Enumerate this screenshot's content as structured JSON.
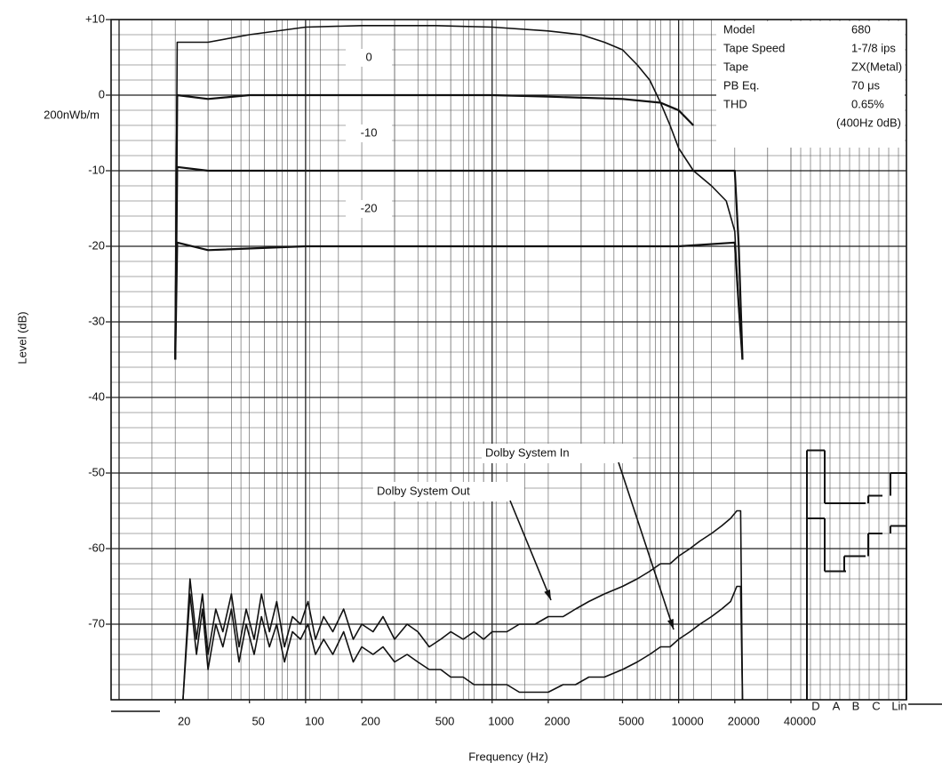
{
  "chart_data": {
    "type": "line",
    "x_label": "Frequency (Hz)",
    "y_label": "Level (dB)",
    "reference_label": "200nWb/m",
    "xscale": "log",
    "xlim": [
      10,
      40000
    ],
    "xticks": [
      20,
      50,
      100,
      200,
      500,
      1000,
      2000,
      5000,
      10000,
      20000,
      40000
    ],
    "ylim": [
      -80,
      10
    ],
    "yticks": [
      {
        "value": 10,
        "label": "+10"
      },
      0,
      -10,
      -20,
      -30,
      -40,
      -50,
      -60,
      -70
    ],
    "grid": true,
    "color": "#111111",
    "series": [
      {
        "name": "+10",
        "x": [
          20,
          20.5,
          30,
          50,
          100,
          200,
          500,
          1000,
          2000,
          3000,
          4000,
          5000,
          6000,
          7000,
          8000,
          9000,
          10000,
          12000,
          15000,
          18000,
          20000,
          21000,
          22000
        ],
        "values": [
          -35,
          7,
          7,
          8,
          9,
          9.2,
          9.2,
          9,
          8.5,
          8,
          7,
          6,
          4,
          2,
          -1,
          -4,
          -7,
          -10,
          -12,
          -14,
          -18,
          -28,
          -35
        ]
      },
      {
        "name": "0",
        "x": [
          20,
          20.5,
          30,
          50,
          100,
          500,
          1000,
          2000,
          5000,
          8000,
          10000,
          12000
        ],
        "values": [
          -35,
          0,
          -0.5,
          0,
          0,
          0,
          0,
          -0.2,
          -0.5,
          -1,
          -2,
          -4
        ]
      },
      {
        "name": "-10",
        "x": [
          20,
          20.5,
          30,
          50,
          100,
          500,
          2000,
          10000,
          20000,
          21000,
          22000
        ],
        "values": [
          -35,
          -9.5,
          -10,
          -10,
          -10,
          -10,
          -10,
          -10,
          -10,
          -20,
          -35
        ]
      },
      {
        "name": "-20",
        "x": [
          20,
          20.5,
          30,
          100,
          500,
          2000,
          10000,
          20000,
          21000,
          22000
        ],
        "values": [
          -35,
          -19.5,
          -20.5,
          -20,
          -20,
          -20,
          -20,
          -19.5,
          -28,
          -35
        ]
      },
      {
        "name": "Dolby System Out",
        "x": [
          22,
          24,
          26,
          28,
          30,
          33,
          36,
          40,
          44,
          48,
          53,
          58,
          64,
          70,
          77,
          85,
          94,
          103,
          113,
          125,
          140,
          160,
          180,
          200,
          230,
          260,
          300,
          350,
          400,
          460,
          530,
          600,
          700,
          800,
          900,
          1000,
          1200,
          1400,
          1700,
          2000,
          2400,
          2800,
          3300,
          4000,
          5000,
          6000,
          7000,
          8000,
          9000,
          10000,
          11500,
          13000,
          15000,
          17000,
          19000,
          20500,
          21500,
          22000
        ],
        "values": [
          -80,
          -64,
          -72,
          -66,
          -74,
          -68,
          -71,
          -66,
          -73,
          -68,
          -72,
          -66,
          -71,
          -67,
          -73,
          -69,
          -70,
          -67,
          -72,
          -69,
          -71,
          -68,
          -72,
          -70,
          -71,
          -69,
          -72,
          -70,
          -71,
          -73,
          -72,
          -71,
          -72,
          -71,
          -72,
          -71,
          -71,
          -70,
          -70,
          -69,
          -69,
          -68,
          -67,
          -66,
          -65,
          -64,
          -63,
          -62,
          -62,
          -61,
          -60,
          -59,
          -58,
          -57,
          -56,
          -55,
          -55,
          -80
        ]
      },
      {
        "name": "Dolby System In",
        "x": [
          22,
          24,
          26,
          28,
          30,
          33,
          36,
          40,
          44,
          48,
          53,
          58,
          64,
          70,
          77,
          85,
          94,
          103,
          113,
          125,
          140,
          160,
          180,
          200,
          230,
          260,
          300,
          350,
          400,
          460,
          530,
          600,
          700,
          800,
          900,
          1000,
          1200,
          1400,
          1700,
          2000,
          2400,
          2800,
          3300,
          4000,
          5000,
          6000,
          7000,
          8000,
          9000,
          10000,
          11500,
          13000,
          15000,
          17000,
          19000,
          20500,
          21500,
          22000
        ],
        "values": [
          -80,
          -66,
          -74,
          -68,
          -76,
          -70,
          -73,
          -68,
          -75,
          -70,
          -74,
          -69,
          -73,
          -70,
          -75,
          -71,
          -72,
          -70,
          -74,
          -72,
          -74,
          -71,
          -75,
          -73,
          -74,
          -73,
          -75,
          -74,
          -75,
          -76,
          -76,
          -77,
          -77,
          -78,
          -78,
          -78,
          -78,
          -79,
          -79,
          -79,
          -78,
          -78,
          -77,
          -77,
          -76,
          -75,
          -74,
          -73,
          -73,
          -72,
          -71,
          -70,
          -69,
          -68,
          -67,
          -65,
          -65,
          -80
        ]
      }
    ],
    "weighted": {
      "categories": [
        "D",
        "A",
        "B",
        "C",
        "Lin"
      ],
      "series": [
        {
          "values": [
            -47,
            -54,
            -54,
            -53,
            -50
          ]
        },
        {
          "values": [
            -56,
            -63,
            -61,
            -58,
            -57
          ]
        }
      ]
    },
    "specs": [
      [
        "Model",
        "680"
      ],
      [
        "Tape Speed",
        "1-7/8 ips"
      ],
      [
        "Tape",
        "ZX(Metal)"
      ],
      [
        "PB Eq.",
        "70 μs"
      ],
      [
        "THD",
        "0.65%"
      ],
      [
        null,
        "(400Hz 0dB)"
      ]
    ]
  }
}
